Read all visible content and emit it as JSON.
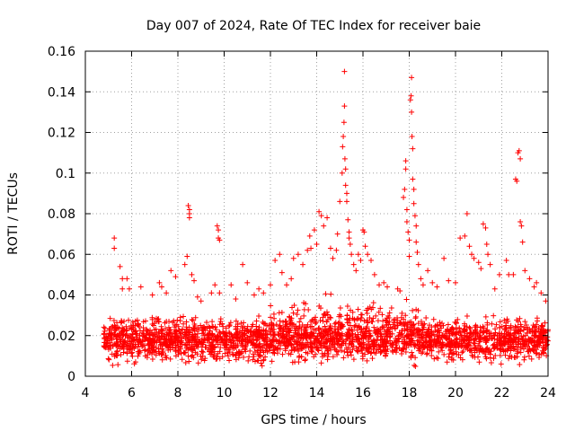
{
  "chart_data": {
    "type": "scatter",
    "title": "Day 007 of 2024, Rate Of TEC Index for receiver baie",
    "xlabel": "GPS time / hours",
    "ylabel": "ROTI / TECUs",
    "xlim": [
      4,
      24
    ],
    "ylim": [
      0,
      0.16
    ],
    "grid": true,
    "marker": "+",
    "color": "#ff0000",
    "x_ticks": [
      4,
      6,
      8,
      10,
      12,
      14,
      16,
      18,
      20,
      22,
      24
    ],
    "x_tick_labels": [
      "4",
      "6",
      "8",
      "10",
      "12",
      "14",
      "16",
      "18",
      "20",
      "22",
      "24"
    ],
    "y_ticks": [
      0,
      0.02,
      0.04,
      0.06,
      0.08,
      0.1,
      0.12,
      0.14,
      0.16
    ],
    "y_tick_labels": [
      "0",
      "0.02",
      "0.04",
      "0.06",
      "0.08",
      "0.1",
      "0.12",
      "0.14",
      "0.16"
    ],
    "series": [
      {
        "name": "ROTI",
        "points": [
          [
            5.25,
            0.068
          ],
          [
            5.25,
            0.063
          ],
          [
            5.5,
            0.054
          ],
          [
            5.6,
            0.048
          ],
          [
            5.6,
            0.043
          ],
          [
            5.8,
            0.048
          ],
          [
            5.9,
            0.043
          ],
          [
            6.4,
            0.044
          ],
          [
            6.9,
            0.04
          ],
          [
            7.2,
            0.046
          ],
          [
            7.3,
            0.044
          ],
          [
            7.5,
            0.041
          ],
          [
            7.7,
            0.052
          ],
          [
            7.9,
            0.049
          ],
          [
            8.3,
            0.055
          ],
          [
            8.4,
            0.059
          ],
          [
            8.45,
            0.084
          ],
          [
            8.5,
            0.082
          ],
          [
            8.5,
            0.08
          ],
          [
            8.5,
            0.078
          ],
          [
            8.6,
            0.05
          ],
          [
            8.7,
            0.047
          ],
          [
            8.85,
            0.039
          ],
          [
            9.0,
            0.037
          ],
          [
            9.45,
            0.041
          ],
          [
            9.6,
            0.045
          ],
          [
            9.7,
            0.074
          ],
          [
            9.75,
            0.072
          ],
          [
            9.75,
            0.068
          ],
          [
            9.8,
            0.067
          ],
          [
            9.8,
            0.041
          ],
          [
            10.3,
            0.045
          ],
          [
            10.5,
            0.038
          ],
          [
            10.8,
            0.055
          ],
          [
            11.0,
            0.046
          ],
          [
            11.3,
            0.04
          ],
          [
            11.5,
            0.043
          ],
          [
            11.7,
            0.041
          ],
          [
            12.0,
            0.045
          ],
          [
            12.2,
            0.057
          ],
          [
            12.4,
            0.06
          ],
          [
            12.5,
            0.051
          ],
          [
            12.7,
            0.045
          ],
          [
            12.9,
            0.048
          ],
          [
            13.0,
            0.058
          ],
          [
            13.2,
            0.06
          ],
          [
            13.4,
            0.055
          ],
          [
            13.6,
            0.062
          ],
          [
            13.7,
            0.069
          ],
          [
            13.75,
            0.063
          ],
          [
            13.9,
            0.072
          ],
          [
            14.0,
            0.065
          ],
          [
            14.1,
            0.081
          ],
          [
            14.2,
            0.079
          ],
          [
            14.3,
            0.074
          ],
          [
            14.45,
            0.078
          ],
          [
            14.6,
            0.063
          ],
          [
            14.7,
            0.058
          ],
          [
            14.85,
            0.062
          ],
          [
            14.9,
            0.07
          ],
          [
            15.0,
            0.086
          ],
          [
            15.1,
            0.1
          ],
          [
            15.12,
            0.113
          ],
          [
            15.15,
            0.118
          ],
          [
            15.18,
            0.125
          ],
          [
            15.2,
            0.133
          ],
          [
            15.2,
            0.15
          ],
          [
            15.22,
            0.107
          ],
          [
            15.25,
            0.102
          ],
          [
            15.25,
            0.094
          ],
          [
            15.3,
            0.09
          ],
          [
            15.3,
            0.086
          ],
          [
            15.35,
            0.077
          ],
          [
            15.4,
            0.071
          ],
          [
            15.4,
            0.068
          ],
          [
            15.45,
            0.065
          ],
          [
            15.5,
            0.06
          ],
          [
            15.6,
            0.055
          ],
          [
            15.7,
            0.052
          ],
          [
            15.8,
            0.06
          ],
          [
            15.9,
            0.057
          ],
          [
            16.0,
            0.072
          ],
          [
            16.05,
            0.071
          ],
          [
            16.1,
            0.064
          ],
          [
            16.2,
            0.06
          ],
          [
            16.35,
            0.057
          ],
          [
            16.5,
            0.05
          ],
          [
            16.7,
            0.045
          ],
          [
            16.9,
            0.046
          ],
          [
            17.05,
            0.044
          ],
          [
            17.5,
            0.043
          ],
          [
            17.6,
            0.042
          ],
          [
            17.75,
            0.088
          ],
          [
            17.8,
            0.092
          ],
          [
            17.85,
            0.102
          ],
          [
            17.85,
            0.106
          ],
          [
            17.9,
            0.082
          ],
          [
            17.9,
            0.076
          ],
          [
            17.95,
            0.071
          ],
          [
            18.0,
            0.067
          ],
          [
            18.0,
            0.059
          ],
          [
            18.05,
            0.136
          ],
          [
            18.08,
            0.138
          ],
          [
            18.1,
            0.147
          ],
          [
            18.1,
            0.13
          ],
          [
            18.12,
            0.118
          ],
          [
            18.15,
            0.112
          ],
          [
            18.15,
            0.097
          ],
          [
            18.2,
            0.092
          ],
          [
            18.2,
            0.085
          ],
          [
            18.25,
            0.079
          ],
          [
            18.3,
            0.074
          ],
          [
            18.3,
            0.066
          ],
          [
            18.35,
            0.061
          ],
          [
            18.4,
            0.055
          ],
          [
            18.5,
            0.048
          ],
          [
            18.6,
            0.045
          ],
          [
            18.8,
            0.052
          ],
          [
            19.0,
            0.046
          ],
          [
            19.2,
            0.044
          ],
          [
            19.5,
            0.058
          ],
          [
            19.7,
            0.047
          ],
          [
            20.0,
            0.046
          ],
          [
            20.2,
            0.068
          ],
          [
            20.4,
            0.069
          ],
          [
            20.5,
            0.08
          ],
          [
            20.6,
            0.064
          ],
          [
            20.7,
            0.06
          ],
          [
            20.8,
            0.058
          ],
          [
            21.0,
            0.056
          ],
          [
            21.1,
            0.053
          ],
          [
            21.2,
            0.075
          ],
          [
            21.3,
            0.073
          ],
          [
            21.35,
            0.065
          ],
          [
            21.4,
            0.06
          ],
          [
            21.5,
            0.055
          ],
          [
            21.7,
            0.043
          ],
          [
            21.9,
            0.05
          ],
          [
            22.2,
            0.057
          ],
          [
            22.3,
            0.05
          ],
          [
            22.5,
            0.05
          ],
          [
            22.6,
            0.097
          ],
          [
            22.65,
            0.096
          ],
          [
            22.7,
            0.11
          ],
          [
            22.75,
            0.111
          ],
          [
            22.8,
            0.107
          ],
          [
            22.8,
            0.076
          ],
          [
            22.85,
            0.074
          ],
          [
            22.9,
            0.066
          ],
          [
            23.0,
            0.052
          ],
          [
            23.2,
            0.048
          ],
          [
            23.4,
            0.044
          ],
          [
            23.5,
            0.046
          ],
          [
            23.7,
            0.041
          ],
          [
            23.9,
            0.037
          ]
        ],
        "dense_band": {
          "x_range": [
            4.8,
            24
          ],
          "y_range": [
            0.0,
            0.032
          ],
          "note": "dense cluster of ROTI points mostly between 0.005 and 0.03 TECU/s across the whole time span"
        }
      }
    ]
  }
}
